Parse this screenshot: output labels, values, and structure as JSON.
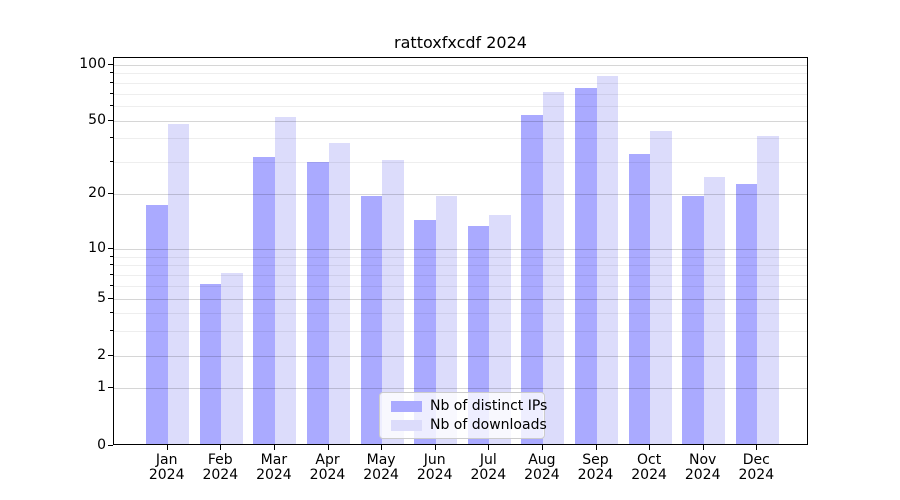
{
  "title": "rattoxfxcdf 2024",
  "legend": {
    "items": [
      {
        "label": "Nb of distinct IPs",
        "color": "#aaaaff"
      },
      {
        "label": "Nb of downloads",
        "color": "#dcdcfb"
      }
    ],
    "position": "lower center"
  },
  "chart_data": {
    "type": "bar",
    "title": "rattoxfxcdf 2024",
    "categories": [
      "Jan 2024",
      "Feb 2024",
      "Mar 2024",
      "Apr 2024",
      "May 2024",
      "Jun 2024",
      "Jul 2024",
      "Aug 2024",
      "Sep 2024",
      "Oct 2024",
      "Nov 2024",
      "Dec 2024"
    ],
    "x_months": [
      "Jan",
      "Feb",
      "Mar",
      "Apr",
      "May",
      "Jun",
      "Jul",
      "Aug",
      "Sep",
      "Oct",
      "Nov",
      "Dec"
    ],
    "x_year_line": "2024",
    "series": [
      {
        "name": "Nb of distinct IPs",
        "color": "#aaaaff",
        "values": [
          17,
          6,
          31,
          29,
          19,
          14,
          13,
          52,
          73,
          32,
          19,
          22
        ]
      },
      {
        "name": "Nb of downloads",
        "color": "#dcdcfb",
        "values": [
          47,
          7,
          51,
          37,
          30,
          19,
          15,
          70,
          85,
          43,
          24,
          40
        ]
      }
    ],
    "y_axis": {
      "scale": "log-like (compressed below 10, linear 0-1 segment)",
      "tick_labels": [
        "0",
        "1",
        "2",
        "5",
        "10",
        "20",
        "50",
        "100"
      ],
      "major_ticks": [
        0,
        1,
        2,
        5,
        10,
        20,
        50,
        100
      ],
      "minor_gridlines": [
        3,
        4,
        6,
        7,
        8,
        9,
        30,
        40,
        60,
        70,
        80,
        90
      ],
      "range": [
        0,
        110
      ]
    },
    "grid": "both, drawn above bars",
    "legend_position": "lower center"
  }
}
